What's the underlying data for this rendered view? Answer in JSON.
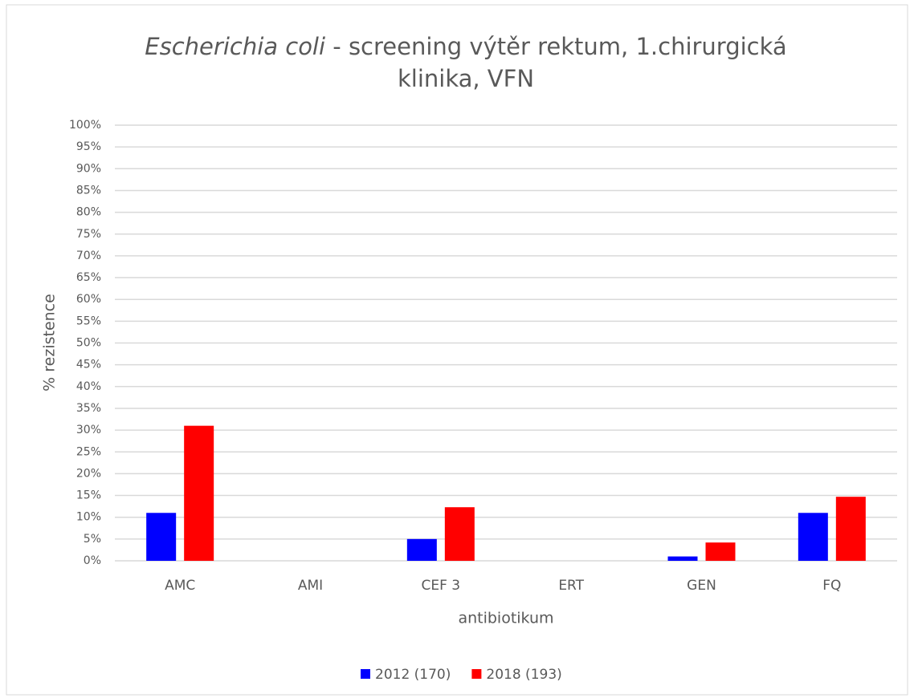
{
  "chart_data": {
    "type": "bar",
    "title": {
      "italic": "Escherichia coli",
      "line1": "- screening výtěr rektum, 1.chirurgická",
      "line2": "klinika, VFN"
    },
    "x_label": "antibiotikum",
    "y_label": "% rezistence",
    "categories": [
      "AMC",
      "AMI",
      "CEF 3",
      "ERT",
      "GEN",
      "FQ"
    ],
    "series": [
      {
        "name": "2012 (170)",
        "color": "#0000ff",
        "values": [
          11,
          0,
          5,
          0,
          1,
          11
        ]
      },
      {
        "name": "2018 (193)",
        "color": "#ff0000",
        "values": [
          31,
          0,
          12.3,
          0,
          4.2,
          14.7
        ]
      }
    ],
    "ylim": [
      0,
      100
    ],
    "yticks": [
      {
        "value": 0,
        "label": "0%"
      },
      {
        "value": 5,
        "label": "5%"
      },
      {
        "value": 10,
        "label": "10%"
      },
      {
        "value": 15,
        "label": "15%"
      },
      {
        "value": 20,
        "label": "20%"
      },
      {
        "value": 25,
        "label": "25%"
      },
      {
        "value": 30,
        "label": "30%"
      },
      {
        "value": 35,
        "label": "35%"
      },
      {
        "value": 40,
        "label": "40%"
      },
      {
        "value": 45,
        "label": "45%"
      },
      {
        "value": 50,
        "label": "50%"
      },
      {
        "value": 55,
        "label": "55%"
      },
      {
        "value": 60,
        "label": "60%"
      },
      {
        "value": 65,
        "label": "65%"
      },
      {
        "value": 70,
        "label": "70%"
      },
      {
        "value": 75,
        "label": "75%"
      },
      {
        "value": 80,
        "label": "80%"
      },
      {
        "value": 85,
        "label": "85%"
      },
      {
        "value": 90,
        "label": "90%"
      },
      {
        "value": 95,
        "label": "95%"
      },
      {
        "value": 100,
        "label": "100%"
      }
    ],
    "grid": true,
    "legend": "bottom"
  }
}
